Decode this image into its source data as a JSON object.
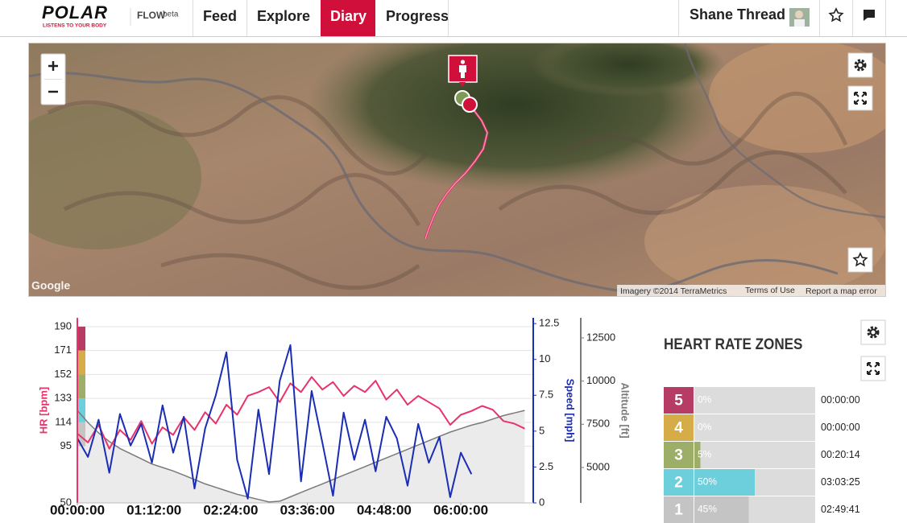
{
  "header": {
    "logo": "POLAR",
    "tagline": "LISTENS TO YOUR BODY",
    "product": "FLOW",
    "product_tag": "beta",
    "nav": [
      "Feed",
      "Explore",
      "Diary",
      "Progress"
    ],
    "user": "Shane Thread"
  },
  "map": {
    "brand": "Google",
    "attribution": "Imagery ©2014 TerraMetrics",
    "links": [
      "Terms of Use",
      "Report a map error"
    ]
  },
  "chart_data": {
    "type": "line",
    "x": [
      0,
      10,
      20,
      30,
      40,
      50,
      60,
      70,
      80,
      90,
      100,
      110,
      120,
      130,
      140,
      150,
      160,
      170,
      180,
      190,
      200,
      210,
      220,
      230,
      240,
      250,
      260,
      270,
      280,
      290,
      300,
      310,
      320,
      330,
      340,
      350,
      360,
      370,
      380,
      390,
      400,
      410,
      420
    ],
    "xlim": [
      0,
      428
    ],
    "xticks": [
      {
        "value": 0,
        "label": "00:00:00"
      },
      {
        "value": 72,
        "label": "01:12:00"
      },
      {
        "value": 144,
        "label": "02:24:00"
      },
      {
        "value": 216,
        "label": "03:36:00"
      },
      {
        "value": 288,
        "label": "04:48:00"
      },
      {
        "value": 360,
        "label": "06:00:00"
      }
    ],
    "ylim": [
      50,
      197
    ],
    "yticks": [
      50,
      95,
      114,
      133,
      152,
      171,
      190
    ],
    "y2lim": [
      0,
      12.9
    ],
    "y2ticks": [
      0,
      2.5,
      5,
      7.5,
      10,
      12.5
    ],
    "y3lim": [
      2950,
      13660
    ],
    "y3ticks": [
      5000,
      7500,
      10000,
      12500
    ],
    "grid": true,
    "series": [
      {
        "name": "HR [bpm]",
        "color": "#e8336b",
        "axis": "y",
        "values": [
          105,
          98,
          112,
          93,
          108,
          100,
          115,
          97,
          110,
          104,
          118,
          108,
          122,
          113,
          128,
          120,
          135,
          138,
          142,
          130,
          145,
          138,
          150,
          140,
          146,
          135,
          143,
          138,
          147,
          132,
          140,
          128,
          135,
          130,
          125,
          112,
          120,
          123,
          127,
          124,
          115,
          113,
          109
        ]
      },
      {
        "name": "Speed [mph]",
        "color": "#1a2db5",
        "axis": "y2",
        "values": [
          4.5,
          3.2,
          5.8,
          2.1,
          6.2,
          4.0,
          5.5,
          2.8,
          6.8,
          3.5,
          6.0,
          1.0,
          5.2,
          7.5,
          10.5,
          3.0,
          0.3,
          6.5,
          2.0,
          8.5,
          11.0,
          1.5,
          7.8,
          4.2,
          0.5,
          6.3,
          3.0,
          5.8,
          2.2,
          6.0,
          4.5,
          1.2,
          5.5,
          2.8,
          4.6,
          0.4,
          3.5,
          2.0,
          null,
          null,
          null,
          null,
          null
        ]
      },
      {
        "name": "Altitude [ft]",
        "color": "#7a7a7a",
        "axis": "y3",
        "values": [
          8300,
          7600,
          7000,
          6500,
          6100,
          5800,
          5500,
          5200,
          5000,
          4800,
          4550,
          4300,
          4050,
          3850,
          3650,
          3450,
          3300,
          3150,
          3000,
          3050,
          3300,
          3550,
          3800,
          4050,
          4300,
          4550,
          4800,
          5050,
          5300,
          5550,
          5800,
          6050,
          6300,
          6550,
          6800,
          7050,
          7250,
          7450,
          7600,
          7800,
          8000,
          8150,
          8300
        ]
      }
    ]
  },
  "heart_rate_zones": {
    "title": "HEART RATE ZONES",
    "zones": [
      "5",
      "4",
      "3",
      "2",
      "1"
    ],
    "values": [
      0,
      0,
      5,
      50,
      45
    ],
    "value_labels": [
      "0%",
      "0%",
      "5%",
      "50%",
      "45%"
    ],
    "times": [
      "00:00:00",
      "00:00:00",
      "00:20:14",
      "03:03:25",
      "02:49:41"
    ],
    "colors": [
      "#b63c66",
      "#d6ac48",
      "#9cae68",
      "#6dcfdc",
      "#c4c4c4"
    ]
  }
}
